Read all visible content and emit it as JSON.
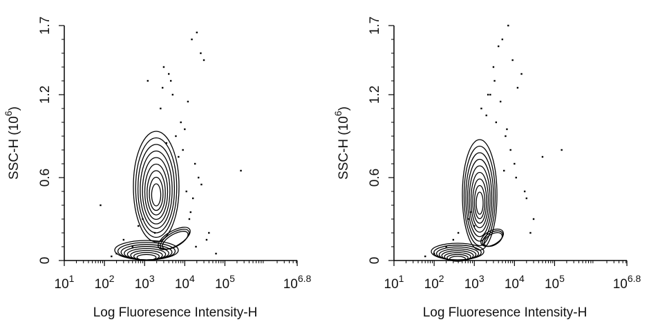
{
  "chart_data": [
    {
      "type": "scatter",
      "xlabel": "Log Fluoresence Intensity-H",
      "ylabel": {
        "text": "SSC-H (10",
        "exponent": "6",
        "suffix": ")"
      },
      "log_x": true,
      "color": "#000000",
      "xlim": [
        10,
        6309573.4
      ],
      "ylim": [
        0,
        1.7
      ],
      "xticks": [
        {
          "value": 10,
          "label": "10",
          "exponent": "1"
        },
        {
          "value": 100,
          "label": "10",
          "exponent": "2"
        },
        {
          "value": 1000,
          "label": "10",
          "exponent": "3"
        },
        {
          "value": 10000,
          "label": "10",
          "exponent": "4"
        },
        {
          "value": 100000,
          "label": "10",
          "exponent": "5"
        },
        {
          "value": 6309573.4,
          "label": "10",
          "exponent": "6.8"
        }
      ],
      "yticks": [
        0,
        0.6,
        1.2,
        1.7
      ],
      "x": [
        1200,
        2500,
        3000,
        4000,
        5000,
        8000,
        10000,
        12000,
        15000,
        20000,
        25000,
        30000,
        9000,
        6000,
        3500,
        700,
        500,
        300,
        200,
        150,
        80,
        18000,
        22000,
        7000,
        11000,
        16000,
        2800,
        4500,
        13000,
        250000,
        40000,
        60000,
        35000,
        14000,
        19000,
        900,
        1800,
        26000
      ],
      "y": [
        1.3,
        1.1,
        1.4,
        1.35,
        1.2,
        1.0,
        0.95,
        1.15,
        1.6,
        1.65,
        1.5,
        1.45,
        0.8,
        0.9,
        0.85,
        0.25,
        0.1,
        0.15,
        0.05,
        0.03,
        0.4,
        0.7,
        0.6,
        0.75,
        0.5,
        0.45,
        1.25,
        1.3,
        0.3,
        0.65,
        0.2,
        0.05,
        0.15,
        0.35,
        0.1,
        0.3,
        0.2,
        0.55
      ]
    },
    {
      "type": "scatter",
      "xlabel": "Log Fluoresence Intensity-H",
      "ylabel": {
        "text": "SSC-H (10",
        "exponent": "6",
        "suffix": ")"
      },
      "log_x": true,
      "color": "#000000",
      "xlim": [
        10,
        6309573.4
      ],
      "ylim": [
        0,
        1.7
      ],
      "xticks": [
        {
          "value": 10,
          "label": "10",
          "exponent": "1"
        },
        {
          "value": 100,
          "label": "10",
          "exponent": "2"
        },
        {
          "value": 1000,
          "label": "10",
          "exponent": "3"
        },
        {
          "value": 10000,
          "label": "10",
          "exponent": "4"
        },
        {
          "value": 100000,
          "label": "10",
          "exponent": "5"
        },
        {
          "value": 6309573.4,
          "label": "10",
          "exponent": "6.8"
        }
      ],
      "yticks": [
        0,
        0.6,
        1.2,
        1.7
      ],
      "x": [
        1500,
        2500,
        3000,
        4000,
        5000,
        7000,
        9000,
        12000,
        15000,
        6000,
        3500,
        8000,
        10000,
        150000,
        50000,
        30000,
        20000,
        700,
        400,
        200,
        100,
        60,
        1000,
        2000,
        4500,
        11000,
        5500,
        800,
        300,
        25000,
        18000,
        3200,
        2200,
        6500
      ],
      "y": [
        1.1,
        1.2,
        1.4,
        1.55,
        1.6,
        1.7,
        1.45,
        1.25,
        1.35,
        0.9,
        1.0,
        0.8,
        0.7,
        0.8,
        0.75,
        0.3,
        0.45,
        0.3,
        0.2,
        0.1,
        0.05,
        0.03,
        0.25,
        1.05,
        1.15,
        0.6,
        0.65,
        0.35,
        0.15,
        0.2,
        0.5,
        1.3,
        1.2,
        0.95
      ]
    }
  ]
}
